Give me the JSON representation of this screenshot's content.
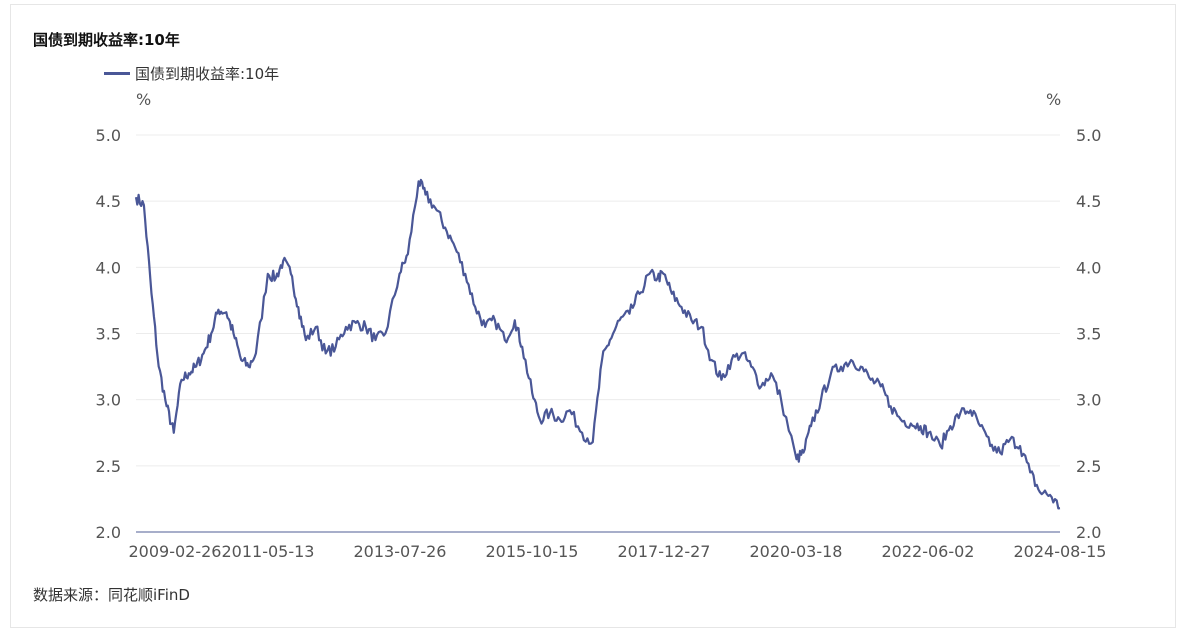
{
  "title": "国债到期收益率:10年",
  "legend": {
    "label": "国债到期收益率:10年",
    "color": "#4a5797"
  },
  "unit_left": "%",
  "unit_right": "%",
  "source": "数据来源：同花顺iFinD",
  "chart_data": {
    "type": "line",
    "title": "国债到期收益率:10年",
    "xlabel": "",
    "ylabel": "%",
    "ylim": [
      2.0,
      5.0
    ],
    "yticks": [
      "5.0",
      "4.5",
      "4.0",
      "3.5",
      "3.0",
      "2.5",
      "2.0"
    ],
    "xticks": [
      "2009-02-26",
      "2011-05-13",
      "2013-07-26",
      "2015-10-15",
      "2017-12-27",
      "2020-03-18",
      "2022-06-02",
      "2024-08-15"
    ],
    "grid": true,
    "legend_position": "top-left",
    "series": [
      {
        "name": "国债到期收益率:10年",
        "color": "#4a5797",
        "x": [
          "2009-02-26",
          "2009-04-15",
          "2009-06-01",
          "2009-07-15",
          "2009-09-01",
          "2009-10-15",
          "2009-12-01",
          "2010-01-15",
          "2010-03-01",
          "2010-04-15",
          "2010-06-01",
          "2010-07-15",
          "2010-09-01",
          "2010-10-15",
          "2010-12-01",
          "2011-01-15",
          "2011-03-01",
          "2011-05-13",
          "2011-07-01",
          "2011-08-15",
          "2011-10-01",
          "2011-11-15",
          "2012-01-01",
          "2012-03-01",
          "2012-05-01",
          "2012-07-01",
          "2012-09-01",
          "2012-11-01",
          "2013-01-01",
          "2013-03-01",
          "2013-05-01",
          "2013-07-26",
          "2013-09-15",
          "2013-11-20",
          "2014-01-01",
          "2014-03-01",
          "2014-05-01",
          "2014-07-01",
          "2014-09-01",
          "2014-11-01",
          "2015-01-01",
          "2015-03-01",
          "2015-05-01",
          "2015-07-01",
          "2015-08-15",
          "2015-10-15",
          "2015-12-01",
          "2016-02-01",
          "2016-04-01",
          "2016-06-01",
          "2016-08-15",
          "2016-10-20",
          "2016-12-15",
          "2017-02-01",
          "2017-04-01",
          "2017-06-01",
          "2017-08-01",
          "2017-10-01",
          "2017-11-20",
          "2017-12-27",
          "2018-02-15",
          "2018-04-15",
          "2018-06-15",
          "2018-08-15",
          "2018-10-15",
          "2018-12-15",
          "2019-02-15",
          "2019-04-20",
          "2019-06-15",
          "2019-08-15",
          "2019-10-15",
          "2019-12-15",
          "2020-03-18",
          "2020-04-30",
          "2020-06-15",
          "2020-08-15",
          "2020-10-15",
          "2020-12-15",
          "2021-02-15",
          "2021-04-15",
          "2021-06-15",
          "2021-08-15",
          "2021-10-15",
          "2021-12-15",
          "2022-02-15",
          "2022-04-15",
          "2022-06-02",
          "2022-08-15",
          "2022-10-15",
          "2022-12-15",
          "2023-02-15",
          "2023-04-15",
          "2023-06-15",
          "2023-08-15",
          "2023-10-15",
          "2023-12-15",
          "2024-02-15",
          "2024-04-15",
          "2024-06-15",
          "2024-08-15"
        ],
        "y": [
          4.53,
          4.47,
          3.8,
          3.25,
          2.95,
          2.75,
          3.15,
          3.2,
          3.25,
          3.35,
          3.5,
          3.68,
          3.66,
          3.5,
          3.3,
          3.25,
          3.35,
          3.95,
          3.92,
          4.05,
          3.95,
          3.7,
          3.45,
          3.55,
          3.35,
          3.4,
          3.55,
          3.58,
          3.55,
          3.45,
          3.5,
          3.95,
          4.1,
          4.65,
          4.55,
          4.45,
          4.3,
          4.15,
          3.95,
          3.7,
          3.55,
          3.6,
          3.45,
          3.6,
          3.4,
          3.05,
          2.85,
          2.9,
          2.85,
          2.92,
          2.75,
          2.68,
          3.3,
          3.45,
          3.6,
          3.65,
          3.8,
          3.95,
          3.92,
          3.95,
          3.8,
          3.7,
          3.6,
          3.55,
          3.3,
          3.15,
          3.3,
          3.35,
          3.25,
          3.1,
          3.2,
          3.0,
          2.55,
          2.6,
          2.8,
          3.0,
          3.2,
          3.25,
          3.3,
          3.25,
          3.15,
          3.1,
          2.95,
          2.85,
          2.82,
          2.8,
          2.75,
          2.65,
          2.8,
          2.9,
          2.92,
          2.8,
          2.65,
          2.6,
          2.7,
          2.65,
          2.45,
          2.3,
          2.28,
          2.18
        ]
      }
    ]
  }
}
